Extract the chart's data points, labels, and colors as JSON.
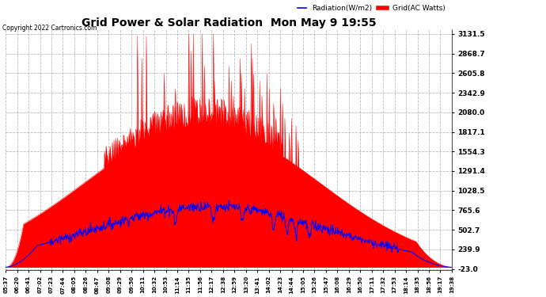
{
  "title": "Grid Power & Solar Radiation  Mon May 9 19:55",
  "copyright": "Copyright 2022 Cartronics.com",
  "legend_radiation": "Radiation(W/m2)",
  "legend_grid": "Grid(AC Watts)",
  "radiation_color": "blue",
  "grid_color": "red",
  "background_color": "#ffffff",
  "yticks": [
    3131.5,
    2868.7,
    2605.8,
    2342.9,
    2080.0,
    1817.1,
    1554.3,
    1291.4,
    1028.5,
    765.6,
    502.7,
    239.9,
    -23.0
  ],
  "ymin": -23.0,
  "ymax": 3131.5,
  "grid_line_color": "#aaaaaa",
  "x_labels": [
    "05:37",
    "06:20",
    "06:41",
    "07:02",
    "07:23",
    "07:44",
    "08:05",
    "08:26",
    "08:47",
    "09:08",
    "09:29",
    "09:50",
    "10:11",
    "10:32",
    "10:53",
    "11:14",
    "11:35",
    "11:56",
    "12:17",
    "12:38",
    "12:59",
    "13:20",
    "13:41",
    "14:02",
    "14:23",
    "14:44",
    "15:05",
    "15:26",
    "15:47",
    "16:08",
    "16:29",
    "16:50",
    "17:11",
    "17:32",
    "17:53",
    "18:14",
    "18:35",
    "18:56",
    "19:17",
    "19:38"
  ]
}
